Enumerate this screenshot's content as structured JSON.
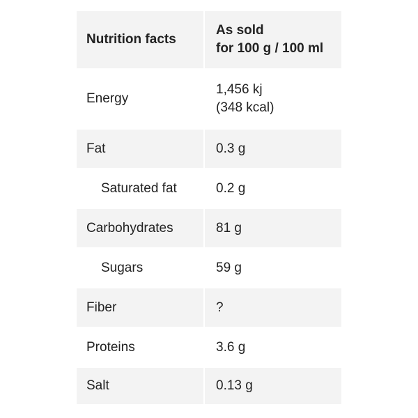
{
  "table": {
    "header": {
      "nutrient": "Nutrition facts",
      "value_line1": "As sold",
      "value_line2": "for 100 g / 100 ml"
    },
    "rows": [
      {
        "nutrient": "Energy",
        "value_line1": "1,456 kj",
        "value_line2": "(348 kcal)"
      },
      {
        "nutrient": "Fat",
        "value": "0.3 g"
      },
      {
        "nutrient": "Saturated fat",
        "value": "0.2 g"
      },
      {
        "nutrient": "Carbohydrates",
        "value": "81 g"
      },
      {
        "nutrient": "Sugars",
        "value": "59 g"
      },
      {
        "nutrient": "Fiber",
        "value": "?"
      },
      {
        "nutrient": "Proteins",
        "value": "3.6 g"
      },
      {
        "nutrient": "Salt",
        "value": "0.13 g"
      }
    ]
  }
}
